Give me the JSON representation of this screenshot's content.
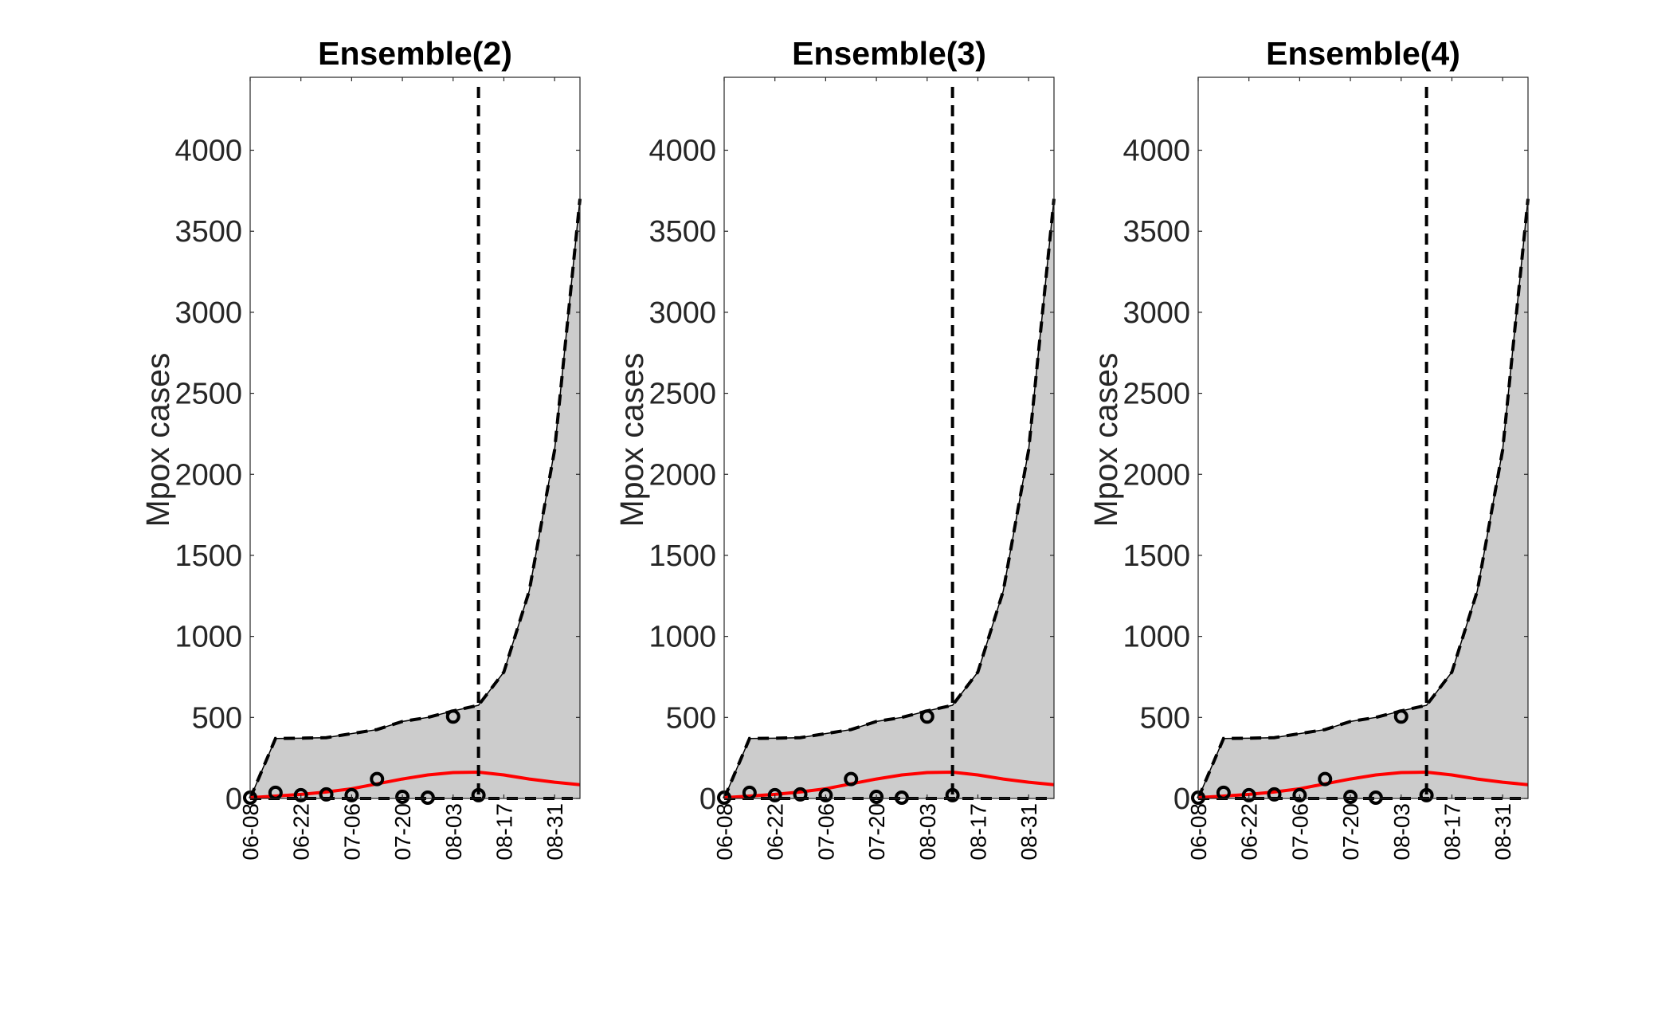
{
  "chart_data": [
    {
      "type": "line",
      "title": "Ensemble(2)",
      "xlabel": "",
      "ylabel": "Mpox cases",
      "ylim": [
        0,
        4450
      ],
      "yticks": [
        0,
        500,
        1000,
        1500,
        2000,
        2500,
        3000,
        3500,
        4000
      ],
      "xtick_labels": [
        "06-08",
        "06-22",
        "07-06",
        "07-20",
        "08-03",
        "08-17",
        "08-31"
      ],
      "x": [
        "06-08",
        "06-15",
        "06-22",
        "06-29",
        "07-06",
        "07-13",
        "07-20",
        "07-27",
        "08-03",
        "08-10",
        "08-17",
        "08-24",
        "08-31",
        "09-07"
      ],
      "forecast_start": "08-10",
      "grid": false,
      "legend": "none",
      "colors": {
        "band": "#cccccc",
        "median": "#ff0000",
        "observed": "#000000",
        "bounds": "#000000"
      },
      "series": [
        {
          "role": "upper",
          "values": [
            0,
            370,
            372,
            375,
            400,
            425,
            475,
            500,
            540,
            575,
            780,
            1280,
            2150,
            3700
          ]
        },
        {
          "role": "lower",
          "values": [
            0,
            0,
            0,
            0,
            0,
            0,
            0,
            0,
            0,
            0,
            0,
            0,
            0,
            0
          ]
        },
        {
          "role": "median",
          "values": [
            5,
            15,
            25,
            40,
            60,
            90,
            120,
            145,
            160,
            162,
            145,
            120,
            100,
            85
          ]
        },
        {
          "role": "observed",
          "x": [
            "06-08",
            "06-15",
            "06-22",
            "06-29",
            "07-06",
            "07-13",
            "07-20",
            "07-27",
            "08-03",
            "08-10"
          ],
          "values": [
            5,
            35,
            20,
            25,
            20,
            120,
            10,
            5,
            505,
            20
          ]
        }
      ]
    },
    {
      "type": "line",
      "title": "Ensemble(3)",
      "xlabel": "",
      "ylabel": "Mpox cases",
      "ylim": [
        0,
        4450
      ],
      "yticks": [
        0,
        500,
        1000,
        1500,
        2000,
        2500,
        3000,
        3500,
        4000
      ],
      "xtick_labels": [
        "06-08",
        "06-22",
        "07-06",
        "07-20",
        "08-03",
        "08-17",
        "08-31"
      ],
      "x": [
        "06-08",
        "06-15",
        "06-22",
        "06-29",
        "07-06",
        "07-13",
        "07-20",
        "07-27",
        "08-03",
        "08-10",
        "08-17",
        "08-24",
        "08-31",
        "09-07"
      ],
      "forecast_start": "08-10",
      "grid": false,
      "legend": "none",
      "colors": {
        "band": "#cccccc",
        "median": "#ff0000",
        "observed": "#000000",
        "bounds": "#000000"
      },
      "series": [
        {
          "role": "upper",
          "values": [
            0,
            370,
            372,
            375,
            400,
            425,
            475,
            500,
            540,
            575,
            780,
            1280,
            2150,
            3700
          ]
        },
        {
          "role": "lower",
          "values": [
            0,
            0,
            0,
            0,
            0,
            0,
            0,
            0,
            0,
            0,
            0,
            0,
            0,
            0
          ]
        },
        {
          "role": "median",
          "values": [
            5,
            15,
            25,
            40,
            60,
            90,
            120,
            145,
            160,
            162,
            145,
            120,
            100,
            85
          ]
        },
        {
          "role": "observed",
          "x": [
            "06-08",
            "06-15",
            "06-22",
            "06-29",
            "07-06",
            "07-13",
            "07-20",
            "07-27",
            "08-03",
            "08-10"
          ],
          "values": [
            5,
            35,
            20,
            25,
            20,
            120,
            10,
            5,
            505,
            20
          ]
        }
      ]
    },
    {
      "type": "line",
      "title": "Ensemble(4)",
      "xlabel": "",
      "ylabel": "Mpox cases",
      "ylim": [
        0,
        4450
      ],
      "yticks": [
        0,
        500,
        1000,
        1500,
        2000,
        2500,
        3000,
        3500,
        4000
      ],
      "xtick_labels": [
        "06-08",
        "06-22",
        "07-06",
        "07-20",
        "08-03",
        "08-17",
        "08-31"
      ],
      "x": [
        "06-08",
        "06-15",
        "06-22",
        "06-29",
        "07-06",
        "07-13",
        "07-20",
        "07-27",
        "08-03",
        "08-10",
        "08-17",
        "08-24",
        "08-31",
        "09-07"
      ],
      "forecast_start": "08-10",
      "grid": false,
      "legend": "none",
      "colors": {
        "band": "#cccccc",
        "median": "#ff0000",
        "observed": "#000000",
        "bounds": "#000000"
      },
      "series": [
        {
          "role": "upper",
          "values": [
            0,
            370,
            372,
            375,
            400,
            425,
            475,
            500,
            540,
            575,
            780,
            1280,
            2150,
            3700
          ]
        },
        {
          "role": "lower",
          "values": [
            0,
            0,
            0,
            0,
            0,
            0,
            0,
            0,
            0,
            0,
            0,
            0,
            0,
            0
          ]
        },
        {
          "role": "median",
          "values": [
            5,
            15,
            25,
            40,
            60,
            90,
            120,
            145,
            160,
            162,
            145,
            120,
            100,
            85
          ]
        },
        {
          "role": "observed",
          "x": [
            "06-08",
            "06-15",
            "06-22",
            "06-29",
            "07-06",
            "07-13",
            "07-20",
            "07-27",
            "08-03",
            "08-10"
          ],
          "values": [
            5,
            35,
            20,
            25,
            20,
            120,
            10,
            5,
            505,
            20
          ]
        }
      ]
    }
  ]
}
